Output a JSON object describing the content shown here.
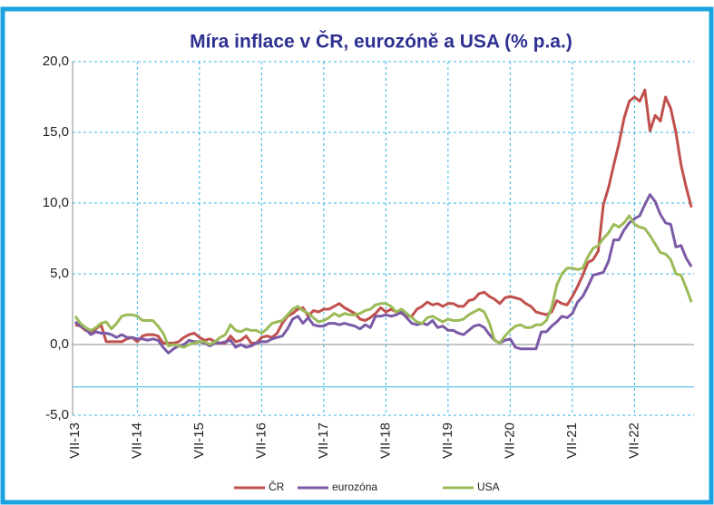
{
  "chart_data": {
    "type": "line",
    "title": "Míra inflace v ČR, eurozóně a USA (% p.a.)",
    "categories": [
      "VII-13",
      null,
      null,
      null,
      null,
      null,
      null,
      null,
      null,
      null,
      null,
      null,
      "VII-14",
      null,
      null,
      null,
      null,
      null,
      null,
      null,
      null,
      null,
      null,
      null,
      "VII-15",
      null,
      null,
      null,
      null,
      null,
      null,
      null,
      null,
      null,
      null,
      null,
      "VII-16",
      null,
      null,
      null,
      null,
      null,
      null,
      null,
      null,
      null,
      null,
      null,
      "VII-17",
      null,
      null,
      null,
      null,
      null,
      null,
      null,
      null,
      null,
      null,
      null,
      "VII-18",
      null,
      null,
      null,
      null,
      null,
      null,
      null,
      null,
      null,
      null,
      null,
      "VII-19",
      null,
      null,
      null,
      null,
      null,
      null,
      null,
      null,
      null,
      null,
      null,
      "VII-20",
      null,
      null,
      null,
      null,
      null,
      null,
      null,
      null,
      null,
      null,
      null,
      "VII-21",
      null,
      null,
      null,
      null,
      null,
      null,
      null,
      null,
      null,
      null,
      null,
      "VII-22",
      null,
      null,
      null,
      null,
      null,
      null,
      null,
      null,
      null,
      null,
      null
    ],
    "series": [
      {
        "name": "ČR",
        "color": "#c0504d",
        "values": [
          1.4,
          1.3,
          1.0,
          0.9,
          1.1,
          1.4,
          0.2,
          0.2,
          0.2,
          0.2,
          0.4,
          0.5,
          0.2,
          0.6,
          0.7,
          0.7,
          0.6,
          0.1,
          0.1,
          0.1,
          0.2,
          0.5,
          0.7,
          0.8,
          0.5,
          0.3,
          0.4,
          0.2,
          0.1,
          0.1,
          0.6,
          0.2,
          0.3,
          0.6,
          0.1,
          0.1,
          0.5,
          0.6,
          0.5,
          0.8,
          1.5,
          2.0,
          2.2,
          2.5,
          2.6,
          2.0,
          2.4,
          2.3,
          2.5,
          2.5,
          2.7,
          2.9,
          2.6,
          2.4,
          2.2,
          1.8,
          1.7,
          1.9,
          2.2,
          2.6,
          2.3,
          2.5,
          2.3,
          2.2,
          2.0,
          2.0,
          2.5,
          2.7,
          3.0,
          2.8,
          2.9,
          2.7,
          2.9,
          2.9,
          2.7,
          2.7,
          3.1,
          3.2,
          3.6,
          3.7,
          3.4,
          3.2,
          2.9,
          3.3,
          3.4,
          3.3,
          3.2,
          2.9,
          2.7,
          2.3,
          2.2,
          2.1,
          2.3,
          3.1,
          2.9,
          2.8,
          3.4,
          4.1,
          4.9,
          5.8,
          6.0,
          6.6,
          9.9,
          11.1,
          12.7,
          14.2,
          16.0,
          17.2,
          17.5,
          17.2,
          18.0,
          15.1,
          16.2,
          15.8,
          17.5,
          16.7,
          15.0,
          12.7,
          11.1,
          9.7
        ]
      },
      {
        "name": "eurozóna",
        "color": "#7b5aa6",
        "values": [
          1.6,
          1.3,
          1.1,
          0.7,
          0.9,
          0.8,
          0.8,
          0.7,
          0.5,
          0.7,
          0.5,
          0.5,
          0.4,
          0.4,
          0.3,
          0.4,
          0.3,
          -0.2,
          -0.6,
          -0.3,
          -0.1,
          0.0,
          0.3,
          0.2,
          0.2,
          0.1,
          -0.1,
          0.1,
          0.1,
          0.2,
          0.3,
          -0.2,
          0.0,
          -0.2,
          -0.1,
          0.1,
          0.2,
          0.2,
          0.4,
          0.5,
          0.6,
          1.1,
          1.8,
          2.0,
          1.5,
          1.9,
          1.4,
          1.3,
          1.3,
          1.5,
          1.5,
          1.4,
          1.5,
          1.4,
          1.3,
          1.1,
          1.4,
          1.2,
          2.0,
          2.0,
          2.1,
          2.0,
          2.1,
          2.3,
          1.9,
          1.5,
          1.4,
          1.5,
          1.4,
          1.7,
          1.2,
          1.3,
          1.0,
          1.0,
          0.8,
          0.7,
          1.0,
          1.3,
          1.4,
          1.2,
          0.7,
          0.3,
          0.1,
          0.3,
          0.4,
          -0.2,
          -0.3,
          -0.3,
          -0.3,
          -0.3,
          0.9,
          0.9,
          1.3,
          1.6,
          2.0,
          1.9,
          2.2,
          3.0,
          3.4,
          4.1,
          4.9,
          5.0,
          5.1,
          5.9,
          7.4,
          7.4,
          8.1,
          8.6,
          8.9,
          9.1,
          9.9,
          10.6,
          10.1,
          9.2,
          8.6,
          8.5,
          6.9,
          7.0,
          6.1,
          5.5
        ]
      },
      {
        "name": "USA",
        "color": "#9bbb59",
        "values": [
          2.0,
          1.5,
          1.2,
          1.0,
          1.2,
          1.5,
          1.6,
          1.1,
          1.5,
          2.0,
          2.1,
          2.1,
          2.0,
          1.7,
          1.7,
          1.7,
          1.3,
          0.8,
          -0.1,
          0.0,
          -0.1,
          -0.2,
          0.0,
          0.1,
          0.2,
          0.2,
          0.0,
          0.2,
          0.5,
          0.7,
          1.4,
          1.0,
          0.9,
          1.1,
          1.0,
          1.0,
          0.8,
          1.1,
          1.5,
          1.6,
          1.7,
          2.1,
          2.5,
          2.7,
          2.4,
          2.2,
          1.9,
          1.6,
          1.7,
          1.9,
          2.2,
          2.0,
          2.2,
          2.1,
          2.1,
          2.2,
          2.4,
          2.5,
          2.8,
          2.9,
          2.9,
          2.7,
          2.3,
          2.5,
          2.2,
          1.9,
          1.6,
          1.5,
          1.9,
          2.0,
          1.8,
          1.6,
          1.8,
          1.7,
          1.7,
          1.8,
          2.1,
          2.3,
          2.5,
          2.3,
          1.5,
          0.3,
          0.1,
          0.6,
          1.0,
          1.3,
          1.4,
          1.2,
          1.2,
          1.4,
          1.4,
          1.7,
          2.6,
          4.2,
          5.0,
          5.4,
          5.4,
          5.3,
          5.4,
          6.2,
          6.8,
          7.0,
          7.5,
          7.9,
          8.5,
          8.3,
          8.6,
          9.1,
          8.5,
          8.3,
          8.2,
          7.7,
          7.1,
          6.5,
          6.4,
          6.0,
          5.0,
          4.9,
          4.0,
          3.0
        ]
      }
    ],
    "ylim": [
      -5,
      20
    ],
    "yticks": [
      {
        "value": -5,
        "label": "-5,0"
      },
      {
        "value": 0,
        "label": "0,0"
      },
      {
        "value": 5,
        "label": "5,0"
      },
      {
        "value": 10,
        "label": "10,0"
      },
      {
        "value": 15,
        "label": "15,0"
      },
      {
        "value": 20,
        "label": "20,0"
      }
    ],
    "reference_line": -3,
    "grid": true,
    "legend": "bottom"
  }
}
